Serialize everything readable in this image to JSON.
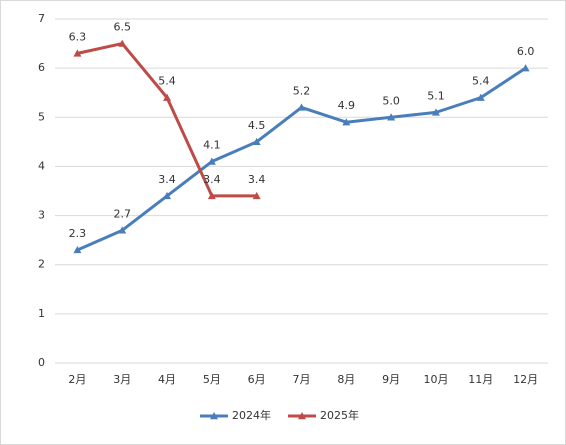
{
  "chart_data": {
    "type": "line",
    "categories": [
      "2月",
      "3月",
      "4月",
      "5月",
      "6月",
      "7月",
      "8月",
      "9月",
      "10月",
      "11月",
      "12月"
    ],
    "series": [
      {
        "name": "2024年",
        "color": "#4a7ebb",
        "values": [
          2.3,
          2.7,
          3.4,
          4.1,
          4.5,
          5.2,
          4.9,
          5.0,
          5.1,
          5.4,
          6.0
        ],
        "value_labels": [
          "2.3",
          "2.7",
          "3.4",
          "4.1",
          "4.5",
          "5.2",
          "4.9",
          "5.0",
          "5.1",
          "5.4",
          "6.0"
        ]
      },
      {
        "name": "2025年",
        "color": "#be4b48",
        "values": [
          6.3,
          6.5,
          5.4,
          3.4,
          3.4,
          null,
          null,
          null,
          null,
          null,
          null
        ],
        "value_labels": [
          "6.3",
          "6.5",
          "5.4",
          "3.4",
          "3.4",
          null,
          null,
          null,
          null,
          null,
          null
        ]
      }
    ],
    "ylim": [
      0,
      7
    ],
    "yticks": [
      0,
      1,
      2,
      3,
      4,
      5,
      6,
      7
    ],
    "grid": true,
    "legend": "bottom"
  }
}
